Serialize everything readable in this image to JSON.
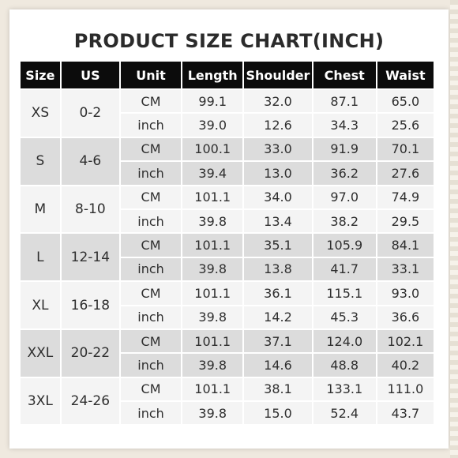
{
  "title": "PRODUCT SIZE CHART(INCH)",
  "colors": {
    "header_bg": "#0c0c0c",
    "row_light": "#f4f4f4",
    "row_dark": "#dcdcdc"
  },
  "table": {
    "headers": [
      "Size",
      "US",
      "Unit",
      "Length",
      "Shoulder",
      "Chest",
      "Waist"
    ],
    "groups": [
      {
        "size": "XS",
        "us": "0-2",
        "rows": [
          {
            "unit": "CM",
            "length": "99.1",
            "shoulder": "32.0",
            "chest": "87.1",
            "waist": "65.0"
          },
          {
            "unit": "inch",
            "length": "39.0",
            "shoulder": "12.6",
            "chest": "34.3",
            "waist": "25.6"
          }
        ]
      },
      {
        "size": "S",
        "us": "4-6",
        "rows": [
          {
            "unit": "CM",
            "length": "100.1",
            "shoulder": "33.0",
            "chest": "91.9",
            "waist": "70.1"
          },
          {
            "unit": "inch",
            "length": "39.4",
            "shoulder": "13.0",
            "chest": "36.2",
            "waist": "27.6"
          }
        ]
      },
      {
        "size": "M",
        "us": "8-10",
        "rows": [
          {
            "unit": "CM",
            "length": "101.1",
            "shoulder": "34.0",
            "chest": "97.0",
            "waist": "74.9"
          },
          {
            "unit": "inch",
            "length": "39.8",
            "shoulder": "13.4",
            "chest": "38.2",
            "waist": "29.5"
          }
        ]
      },
      {
        "size": "L",
        "us": "12-14",
        "rows": [
          {
            "unit": "CM",
            "length": "101.1",
            "shoulder": "35.1",
            "chest": "105.9",
            "waist": "84.1"
          },
          {
            "unit": "inch",
            "length": "39.8",
            "shoulder": "13.8",
            "chest": "41.7",
            "waist": "33.1"
          }
        ]
      },
      {
        "size": "XL",
        "us": "16-18",
        "rows": [
          {
            "unit": "CM",
            "length": "101.1",
            "shoulder": "36.1",
            "chest": "115.1",
            "waist": "93.0"
          },
          {
            "unit": "inch",
            "length": "39.8",
            "shoulder": "14.2",
            "chest": "45.3",
            "waist": "36.6"
          }
        ]
      },
      {
        "size": "XXL",
        "us": "20-22",
        "rows": [
          {
            "unit": "CM",
            "length": "101.1",
            "shoulder": "37.1",
            "chest": "124.0",
            "waist": "102.1"
          },
          {
            "unit": "inch",
            "length": "39.8",
            "shoulder": "14.6",
            "chest": "48.8",
            "waist": "40.2"
          }
        ]
      },
      {
        "size": "3XL",
        "us": "24-26",
        "rows": [
          {
            "unit": "CM",
            "length": "101.1",
            "shoulder": "38.1",
            "chest": "133.1",
            "waist": "111.0"
          },
          {
            "unit": "inch",
            "length": "39.8",
            "shoulder": "15.0",
            "chest": "52.4",
            "waist": "43.7"
          }
        ]
      }
    ]
  }
}
